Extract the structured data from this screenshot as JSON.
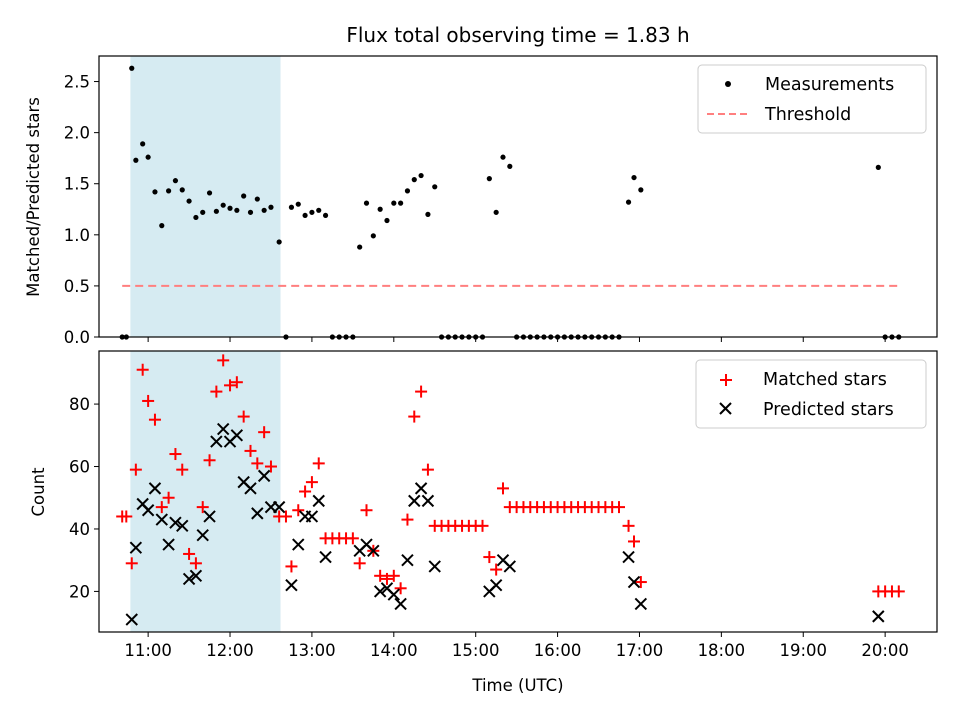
{
  "colors": {
    "measurements": "#000000",
    "threshold": "#ff7f7f",
    "matched": "#ff0000",
    "predicted": "#000000",
    "shade": "#add8e6"
  },
  "chart_data": [
    {
      "type": "scatter",
      "title": "Flux total observing time = 1.83 h",
      "xlabel": "",
      "ylabel": "Matched/Predicted stars",
      "xlim": [
        "10:24",
        "20:38"
      ],
      "ylim": [
        0,
        2.75
      ],
      "yticks": [
        0.0,
        0.5,
        1.0,
        1.5,
        2.0,
        2.5
      ],
      "ytick_labels": [
        "0.0",
        "0.5",
        "1.0",
        "1.5",
        "2.0",
        "2.5"
      ],
      "shaded_span": [
        "10:47",
        "12:37"
      ],
      "legend": {
        "position": "top-right",
        "entries": [
          "Measurements",
          "Threshold"
        ]
      },
      "series": [
        {
          "name": "Measurements",
          "marker": "dot",
          "points": [
            [
              "10:41",
              0
            ],
            [
              "10:44",
              0
            ],
            [
              "10:48",
              2.63
            ],
            [
              "10:51",
              1.73
            ],
            [
              "10:56",
              1.89
            ],
            [
              "11:00",
              1.76
            ],
            [
              "11:05",
              1.42
            ],
            [
              "11:10",
              1.09
            ],
            [
              "11:15",
              1.43
            ],
            [
              "11:20",
              1.53
            ],
            [
              "11:25",
              1.44
            ],
            [
              "11:30",
              1.33
            ],
            [
              "11:35",
              1.17
            ],
            [
              "11:40",
              1.22
            ],
            [
              "11:45",
              1.41
            ],
            [
              "11:50",
              1.23
            ],
            [
              "11:55",
              1.29
            ],
            [
              "12:00",
              1.26
            ],
            [
              "12:05",
              1.24
            ],
            [
              "12:10",
              1.38
            ],
            [
              "12:15",
              1.22
            ],
            [
              "12:20",
              1.35
            ],
            [
              "12:25",
              1.24
            ],
            [
              "12:30",
              1.27
            ],
            [
              "12:36",
              0.93
            ],
            [
              "12:41",
              0
            ],
            [
              "12:45",
              1.27
            ],
            [
              "12:50",
              1.3
            ],
            [
              "12:55",
              1.19
            ],
            [
              "13:00",
              1.22
            ],
            [
              "13:05",
              1.24
            ],
            [
              "13:10",
              1.19
            ],
            [
              "13:15",
              0
            ],
            [
              "13:20",
              0
            ],
            [
              "13:25",
              0
            ],
            [
              "13:30",
              0
            ],
            [
              "13:35",
              0.88
            ],
            [
              "13:40",
              1.31
            ],
            [
              "13:45",
              0.99
            ],
            [
              "13:50",
              1.25
            ],
            [
              "13:55",
              1.14
            ],
            [
              "14:00",
              1.31
            ],
            [
              "14:05",
              1.31
            ],
            [
              "14:10",
              1.43
            ],
            [
              "14:15",
              1.54
            ],
            [
              "14:20",
              1.58
            ],
            [
              "14:25",
              1.2
            ],
            [
              "14:30",
              1.47
            ],
            [
              "14:35",
              0
            ],
            [
              "14:40",
              0
            ],
            [
              "14:45",
              0
            ],
            [
              "14:50",
              0
            ],
            [
              "14:55",
              0
            ],
            [
              "15:00",
              0
            ],
            [
              "15:05",
              0
            ],
            [
              "15:10",
              1.55
            ],
            [
              "15:15",
              1.22
            ],
            [
              "15:20",
              1.76
            ],
            [
              "15:25",
              1.67
            ],
            [
              "15:30",
              0
            ],
            [
              "15:35",
              0
            ],
            [
              "15:40",
              0
            ],
            [
              "15:45",
              0
            ],
            [
              "15:50",
              0
            ],
            [
              "15:55",
              0
            ],
            [
              "16:00",
              0
            ],
            [
              "16:05",
              0
            ],
            [
              "16:10",
              0
            ],
            [
              "16:15",
              0
            ],
            [
              "16:20",
              0
            ],
            [
              "16:25",
              0
            ],
            [
              "16:30",
              0
            ],
            [
              "16:35",
              0
            ],
            [
              "16:40",
              0
            ],
            [
              "16:45",
              0
            ],
            [
              "16:52",
              1.32
            ],
            [
              "16:56",
              1.56
            ],
            [
              "17:01",
              1.44
            ],
            [
              "19:55",
              1.66
            ],
            [
              "20:00",
              0
            ],
            [
              "20:05",
              0
            ],
            [
              "20:10",
              0
            ]
          ]
        },
        {
          "name": "Threshold",
          "style": "dashed",
          "points": [
            [
              "10:41",
              0.5
            ],
            [
              "20:10",
              0.5
            ]
          ]
        }
      ]
    },
    {
      "type": "scatter",
      "title": "",
      "xlabel": "Time (UTC)",
      "ylabel": "Count",
      "xlim": [
        "10:24",
        "20:38"
      ],
      "ylim": [
        7,
        97
      ],
      "yticks": [
        20,
        40,
        60,
        80
      ],
      "ytick_labels": [
        "20",
        "40",
        "60",
        "80"
      ],
      "xticks": [
        "11:00",
        "12:00",
        "13:00",
        "14:00",
        "15:00",
        "16:00",
        "17:00",
        "18:00",
        "19:00",
        "20:00"
      ],
      "xtick_labels": [
        "11:00",
        "12:00",
        "13:00",
        "14:00",
        "15:00",
        "16:00",
        "17:00",
        "18:00",
        "19:00",
        "20:00"
      ],
      "shaded_span": [
        "10:47",
        "12:37"
      ],
      "legend": {
        "position": "top-right",
        "entries": [
          "Matched stars",
          "Predicted stars"
        ]
      },
      "series": [
        {
          "name": "Matched stars",
          "marker": "plus",
          "points": [
            [
              "10:41",
              44
            ],
            [
              "10:44",
              44
            ],
            [
              "10:48",
              29
            ],
            [
              "10:51",
              59
            ],
            [
              "10:56",
              91
            ],
            [
              "11:00",
              81
            ],
            [
              "11:05",
              75
            ],
            [
              "11:10",
              47
            ],
            [
              "11:15",
              50
            ],
            [
              "11:20",
              64
            ],
            [
              "11:25",
              59
            ],
            [
              "11:30",
              32
            ],
            [
              "11:35",
              29
            ],
            [
              "11:40",
              47
            ],
            [
              "11:45",
              62
            ],
            [
              "11:50",
              84
            ],
            [
              "11:55",
              94
            ],
            [
              "12:00",
              86
            ],
            [
              "12:05",
              87
            ],
            [
              "12:10",
              76
            ],
            [
              "12:15",
              65
            ],
            [
              "12:20",
              61
            ],
            [
              "12:25",
              71
            ],
            [
              "12:30",
              60
            ],
            [
              "12:36",
              44
            ],
            [
              "12:41",
              44
            ],
            [
              "12:45",
              28
            ],
            [
              "12:50",
              46
            ],
            [
              "12:55",
              52
            ],
            [
              "13:00",
              55
            ],
            [
              "13:05",
              61
            ],
            [
              "13:10",
              37
            ],
            [
              "13:15",
              37
            ],
            [
              "13:20",
              37
            ],
            [
              "13:25",
              37
            ],
            [
              "13:30",
              37
            ],
            [
              "13:35",
              29
            ],
            [
              "13:40",
              46
            ],
            [
              "13:45",
              33
            ],
            [
              "13:50",
              25
            ],
            [
              "13:55",
              24
            ],
            [
              "14:00",
              25
            ],
            [
              "14:05",
              21
            ],
            [
              "14:10",
              43
            ],
            [
              "14:15",
              76
            ],
            [
              "14:20",
              84
            ],
            [
              "14:25",
              59
            ],
            [
              "14:30",
              41
            ],
            [
              "14:35",
              41
            ],
            [
              "14:40",
              41
            ],
            [
              "14:45",
              41
            ],
            [
              "14:50",
              41
            ],
            [
              "14:55",
              41
            ],
            [
              "15:00",
              41
            ],
            [
              "15:05",
              41
            ],
            [
              "15:10",
              31
            ],
            [
              "15:15",
              27
            ],
            [
              "15:20",
              53
            ],
            [
              "15:25",
              47
            ],
            [
              "15:30",
              47
            ],
            [
              "15:35",
              47
            ],
            [
              "15:40",
              47
            ],
            [
              "15:45",
              47
            ],
            [
              "15:50",
              47
            ],
            [
              "15:55",
              47
            ],
            [
              "16:00",
              47
            ],
            [
              "16:05",
              47
            ],
            [
              "16:10",
              47
            ],
            [
              "16:15",
              47
            ],
            [
              "16:20",
              47
            ],
            [
              "16:25",
              47
            ],
            [
              "16:30",
              47
            ],
            [
              "16:35",
              47
            ],
            [
              "16:40",
              47
            ],
            [
              "16:45",
              47
            ],
            [
              "16:52",
              41
            ],
            [
              "16:56",
              36
            ],
            [
              "17:01",
              23
            ],
            [
              "19:55",
              20
            ],
            [
              "20:00",
              20
            ],
            [
              "20:05",
              20
            ],
            [
              "20:10",
              20
            ]
          ]
        },
        {
          "name": "Predicted stars",
          "marker": "x",
          "points": [
            [
              "10:48",
              11
            ],
            [
              "10:51",
              34
            ],
            [
              "10:56",
              48
            ],
            [
              "11:00",
              46
            ],
            [
              "11:05",
              53
            ],
            [
              "11:10",
              43
            ],
            [
              "11:15",
              35
            ],
            [
              "11:20",
              42
            ],
            [
              "11:25",
              41
            ],
            [
              "11:30",
              24
            ],
            [
              "11:35",
              25
            ],
            [
              "11:40",
              38
            ],
            [
              "11:45",
              44
            ],
            [
              "11:50",
              68
            ],
            [
              "11:55",
              72
            ],
            [
              "12:00",
              68
            ],
            [
              "12:05",
              70
            ],
            [
              "12:10",
              55
            ],
            [
              "12:15",
              53
            ],
            [
              "12:20",
              45
            ],
            [
              "12:25",
              57
            ],
            [
              "12:30",
              47
            ],
            [
              "12:36",
              47
            ],
            [
              "12:45",
              22
            ],
            [
              "12:50",
              35
            ],
            [
              "12:55",
              44
            ],
            [
              "13:00",
              44
            ],
            [
              "13:05",
              49
            ],
            [
              "13:10",
              31
            ],
            [
              "13:35",
              33
            ],
            [
              "13:40",
              35
            ],
            [
              "13:45",
              33
            ],
            [
              "13:50",
              20
            ],
            [
              "13:55",
              21
            ],
            [
              "14:00",
              19
            ],
            [
              "14:05",
              16
            ],
            [
              "14:10",
              30
            ],
            [
              "14:15",
              49
            ],
            [
              "14:20",
              53
            ],
            [
              "14:25",
              49
            ],
            [
              "14:30",
              28
            ],
            [
              "15:10",
              20
            ],
            [
              "15:15",
              22
            ],
            [
              "15:20",
              30
            ],
            [
              "15:25",
              28
            ],
            [
              "16:52",
              31
            ],
            [
              "16:56",
              23
            ],
            [
              "17:01",
              16
            ],
            [
              "19:55",
              12
            ]
          ]
        }
      ]
    }
  ]
}
